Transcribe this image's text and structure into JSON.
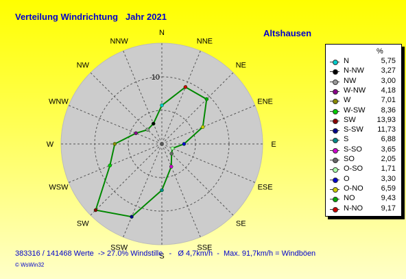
{
  "header": {
    "title": "Verteilung Windrichtung   Jahr 2021",
    "location": "Altshausen"
  },
  "chart_data": {
    "type": "radar",
    "title": "Verteilung Windrichtung   Jahr 2021",
    "unit": "%",
    "rlim": [
      0,
      15
    ],
    "grid": true,
    "ring_label": "10",
    "legend_position": "right",
    "series_color": "#008800",
    "categories": [
      "N",
      "NNE",
      "NE",
      "ENE",
      "E",
      "ESE",
      "SE",
      "SSE",
      "S",
      "SSW",
      "SW",
      "WSW",
      "W",
      "WNW",
      "NW",
      "NNW"
    ],
    "legend": [
      {
        "name": "N",
        "value": "5,75",
        "color": "#00cccc"
      },
      {
        "name": "N-NW",
        "value": "3,27",
        "color": "#000000"
      },
      {
        "name": "NW",
        "value": "3,00",
        "color": "#999999"
      },
      {
        "name": "W-NW",
        "value": "4,18",
        "color": "#880088"
      },
      {
        "name": "W",
        "value": "7,01",
        "color": "#888800"
      },
      {
        "name": "W-SW",
        "value": "8,36",
        "color": "#00cc00"
      },
      {
        "name": "SW",
        "value": "13,93",
        "color": "#880000"
      },
      {
        "name": "S-SW",
        "value": "11,73",
        "color": "#000088"
      },
      {
        "name": "S",
        "value": "6,88",
        "color": "#008888"
      },
      {
        "name": "S-SO",
        "value": "3,65",
        "color": "#cc00cc"
      },
      {
        "name": "SO",
        "value": "2,05",
        "color": "#666666"
      },
      {
        "name": "O-SO",
        "value": "1,71",
        "color": "#aaffaa"
      },
      {
        "name": "O",
        "value": "3,30",
        "color": "#0000cc"
      },
      {
        "name": "O-NO",
        "value": "6,59",
        "color": "#cccc00"
      },
      {
        "name": "NO",
        "value": "9,43",
        "color": "#00aa00"
      },
      {
        "name": "N-NO",
        "value": "9,17",
        "color": "#cc0000"
      }
    ],
    "points": [
      {
        "direction": "N",
        "value": 5.75,
        "color": "#00cccc"
      },
      {
        "direction": "NNE",
        "value": 9.17,
        "color": "#cc0000"
      },
      {
        "direction": "NE",
        "value": 9.43,
        "color": "#00aa00"
      },
      {
        "direction": "ENE",
        "value": 6.59,
        "color": "#cccc00"
      },
      {
        "direction": "E",
        "value": 3.3,
        "color": "#0000cc"
      },
      {
        "direction": "ESE",
        "value": 1.71,
        "color": "#aaffaa"
      },
      {
        "direction": "SE",
        "value": 2.05,
        "color": "#666666"
      },
      {
        "direction": "SSE",
        "value": 3.65,
        "color": "#cc00cc"
      },
      {
        "direction": "S",
        "value": 6.88,
        "color": "#008888"
      },
      {
        "direction": "SSW",
        "value": 11.73,
        "color": "#000088"
      },
      {
        "direction": "SW",
        "value": 13.93,
        "color": "#880000"
      },
      {
        "direction": "WSW",
        "value": 8.36,
        "color": "#00cc00"
      },
      {
        "direction": "W",
        "value": 7.01,
        "color": "#888800"
      },
      {
        "direction": "WNW",
        "value": 4.18,
        "color": "#880088"
      },
      {
        "direction": "NW",
        "value": 3.0,
        "color": "#999999"
      },
      {
        "direction": "NNW",
        "value": 3.27,
        "color": "#000000"
      }
    ]
  },
  "footer": {
    "summary": "383316 / 141468 Werte  -> 27.0% Windstille   -   Ø 4,7km/h  -  Max. 91,7km/h = Windböen",
    "credit": "© WsWin32"
  }
}
